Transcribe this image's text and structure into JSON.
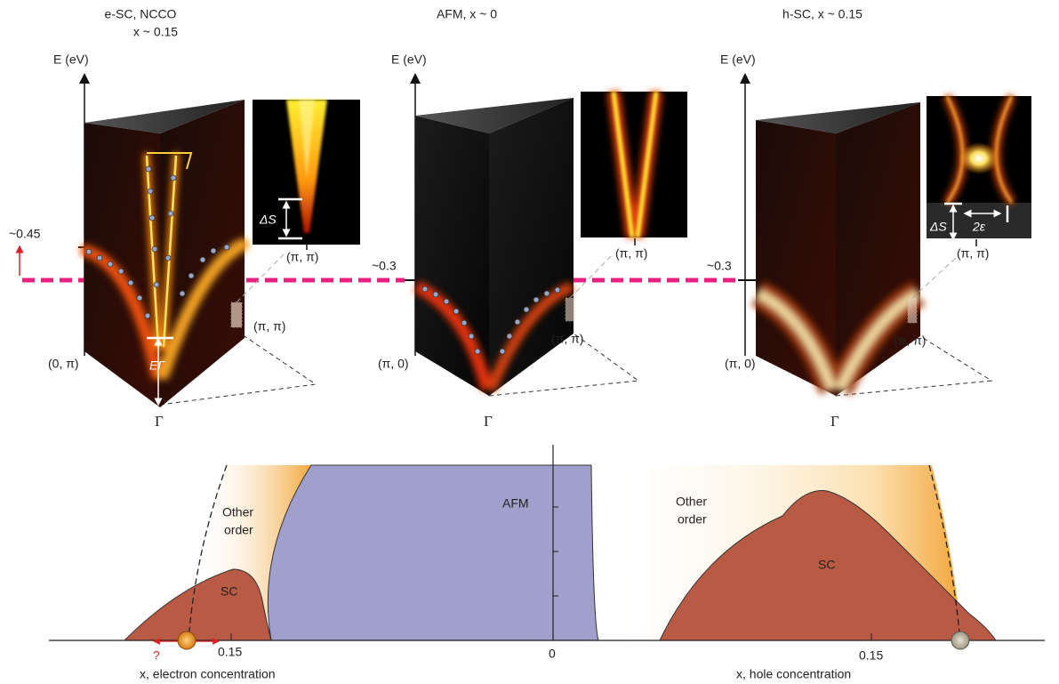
{
  "panels": [
    {
      "title": [
        "e-SC, NCCO",
        "x ~ 0.15"
      ],
      "energy_axis": "E (eV)",
      "energy_mark": "~0.45",
      "k_labels": [
        "(0, π)",
        "(π, π)",
        "Γ"
      ],
      "gap_label": "EΓ",
      "inset": {
        "gap_label": "ΔS",
        "k_label": "(π, π)"
      }
    },
    {
      "title": [
        "AFM, x ~ 0"
      ],
      "energy_axis": "E (eV)",
      "energy_mark": "~0.3",
      "k_labels": [
        "(π, 0)",
        "(π, π)",
        "Γ"
      ],
      "inset": {
        "k_label": "(π, π)"
      }
    },
    {
      "title": [
        "h-SC, x ~ 0.15"
      ],
      "energy_axis": "E (eV)",
      "energy_mark": "~0.3",
      "k_labels": [
        "(π, 0)",
        "(π, π)",
        "Γ"
      ],
      "inset": {
        "gap_label": "ΔS",
        "split_label": "2ε",
        "k_label": "(π, π)"
      }
    }
  ],
  "phase_diagram": {
    "electron_side": {
      "other_order": [
        "Other",
        "order"
      ],
      "sc": "SC",
      "tick": "0.15",
      "unknown": "?",
      "axis_label": "x, electron concentration"
    },
    "afm": "AFM",
    "origin": "0",
    "hole_side": {
      "other_order": [
        "Other",
        "order"
      ],
      "sc": "SC",
      "tick": "0.15",
      "axis_label": "x, hole concentration"
    }
  }
}
